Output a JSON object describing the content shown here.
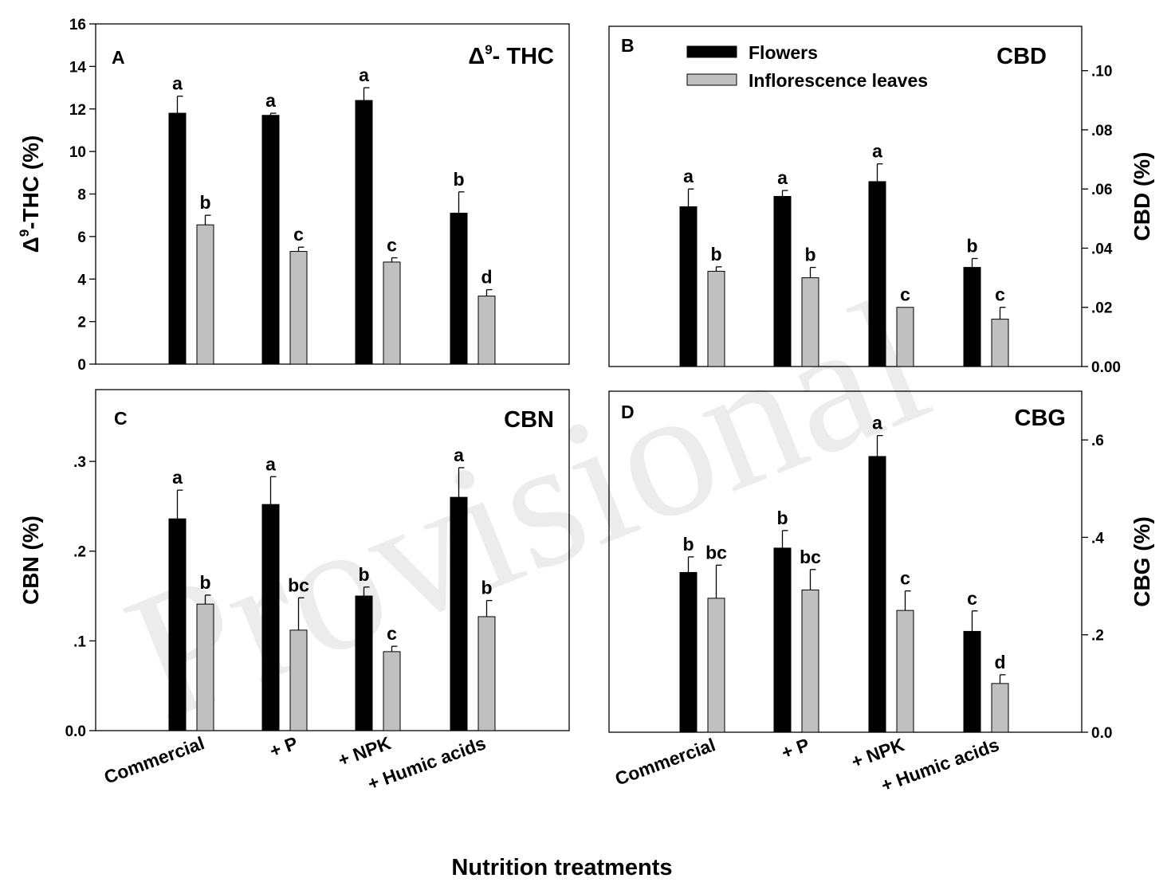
{
  "figure": {
    "x_title": "Nutrition treatments",
    "watermark": "Provisional",
    "colors": {
      "flowers": "#000000",
      "leaves": "#c0c0c0",
      "axis": "#000000"
    }
  },
  "legend": [
    {
      "name": "Flowers",
      "color": "#000000"
    },
    {
      "name": "Inflorescence leaves",
      "color": "#c0c0c0"
    }
  ],
  "chart_data": [
    {
      "type": "bar",
      "panel": "A",
      "title_main": "Δ",
      "title_sup": "9",
      "title_rest": "- THC",
      "ylabel_main": "Δ",
      "ylabel_sup": "9",
      "ylabel_rest": "-THC (%)",
      "y_axis_side": "left",
      "ylim": [
        0,
        16
      ],
      "ticks": [
        0,
        2,
        4,
        6,
        8,
        10,
        12,
        14,
        16
      ],
      "tick_labels": [
        "0",
        "2",
        "4",
        "6",
        "8",
        "10",
        "12",
        "14",
        "16"
      ],
      "categories": [
        "Commercial",
        "+ P",
        "+ NPK",
        "+ Humic acids"
      ],
      "series": [
        {
          "name": "Flowers",
          "values": [
            11.8,
            11.7,
            12.4,
            7.1
          ],
          "errors": [
            0.8,
            0.1,
            0.6,
            1.0
          ],
          "letters": [
            "a",
            "a",
            "a",
            "b"
          ]
        },
        {
          "name": "Inflorescence leaves",
          "values": [
            6.55,
            5.3,
            4.8,
            3.2
          ],
          "errors": [
            0.45,
            0.2,
            0.2,
            0.3
          ],
          "letters": [
            "b",
            "c",
            "c",
            "d"
          ]
        }
      ]
    },
    {
      "type": "bar",
      "panel": "B",
      "title_main": "CBD",
      "ylabel_main": "CBD (%)",
      "y_axis_side": "right",
      "ylim": [
        0,
        0.115
      ],
      "ticks": [
        0,
        0.02,
        0.04,
        0.06,
        0.08,
        0.1
      ],
      "tick_labels": [
        "0.00",
        ".02",
        ".04",
        ".06",
        ".08",
        ".10"
      ],
      "categories": [
        "Commercial",
        "+ P",
        "+ NPK",
        "+ Humic acids"
      ],
      "series": [
        {
          "name": "Flowers",
          "values": [
            0.054,
            0.0575,
            0.0625,
            0.0335
          ],
          "errors": [
            0.006,
            0.002,
            0.006,
            0.003
          ],
          "letters": [
            "a",
            "a",
            "a",
            "b"
          ]
        },
        {
          "name": "Inflorescence leaves",
          "values": [
            0.0322,
            0.03,
            0.02,
            0.016
          ],
          "errors": [
            0.0015,
            0.0035,
            0.0,
            0.004
          ],
          "letters": [
            "b",
            "b",
            "c",
            "c"
          ]
        }
      ]
    },
    {
      "type": "bar",
      "panel": "C",
      "title_main": "CBN",
      "ylabel_main": "CBN (%)",
      "y_axis_side": "left",
      "ylim": [
        0,
        0.38
      ],
      "ticks": [
        0,
        0.1,
        0.2,
        0.3
      ],
      "tick_labels": [
        "0.0",
        ".1",
        ".2",
        ".3"
      ],
      "categories": [
        "Commercial",
        "+ P",
        "+ NPK",
        "+ Humic acids"
      ],
      "series": [
        {
          "name": "Flowers",
          "values": [
            0.236,
            0.252,
            0.15,
            0.26
          ],
          "errors": [
            0.032,
            0.031,
            0.01,
            0.033
          ],
          "letters": [
            "a",
            "a",
            "b",
            "a"
          ]
        },
        {
          "name": "Inflorescence leaves",
          "values": [
            0.141,
            0.112,
            0.088,
            0.127
          ],
          "errors": [
            0.01,
            0.036,
            0.006,
            0.018
          ],
          "letters": [
            "b",
            "bc",
            "c",
            "b"
          ]
        }
      ]
    },
    {
      "type": "bar",
      "panel": "D",
      "title_main": "CBG",
      "ylabel_main": "CBG (%)",
      "y_axis_side": "right",
      "ylim": [
        0,
        0.7
      ],
      "ticks": [
        0,
        0.2,
        0.4,
        0.6
      ],
      "tick_labels": [
        "0.0",
        ".2",
        ".4",
        ".6"
      ],
      "categories": [
        "Commercial",
        "+ P",
        "+ NPK",
        "+ Humic acids"
      ],
      "series": [
        {
          "name": "Flowers",
          "values": [
            0.328,
            0.378,
            0.566,
            0.207
          ],
          "errors": [
            0.032,
            0.036,
            0.043,
            0.042
          ],
          "letters": [
            "b",
            "b",
            "a",
            "c"
          ]
        },
        {
          "name": "Inflorescence leaves",
          "values": [
            0.275,
            0.292,
            0.25,
            0.1
          ],
          "errors": [
            0.068,
            0.042,
            0.04,
            0.018
          ],
          "letters": [
            "bc",
            "bc",
            "c",
            "d"
          ]
        }
      ]
    }
  ]
}
